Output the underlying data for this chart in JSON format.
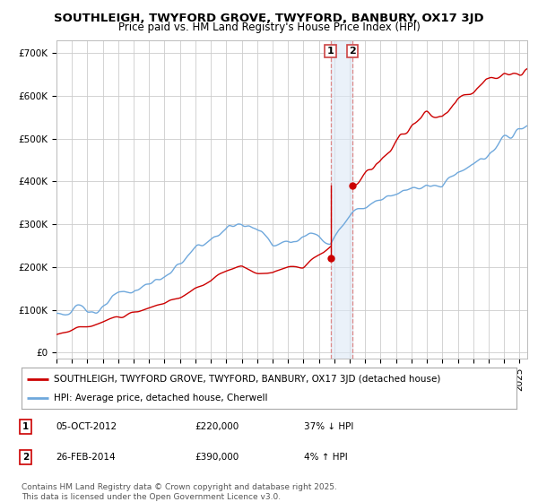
{
  "title": "SOUTHLEIGH, TWYFORD GROVE, TWYFORD, BANBURY, OX17 3JD",
  "subtitle": "Price paid vs. HM Land Registry's House Price Index (HPI)",
  "yticks": [
    0,
    100000,
    200000,
    300000,
    400000,
    500000,
    600000,
    700000
  ],
  "ytick_labels": [
    "£0",
    "£100K",
    "£200K",
    "£300K",
    "£400K",
    "£500K",
    "£600K",
    "£700K"
  ],
  "xlim_start": 1995.0,
  "xlim_end": 2025.5,
  "ylim": [
    -15000,
    730000
  ],
  "hpi_color": "#6fa8dc",
  "price_color": "#cc0000",
  "marker1_date": 2012.75,
  "marker1_price": 220000,
  "marker2_date": 2014.15,
  "marker2_price": 390000,
  "shade_color": "#dce8f5",
  "shade_alpha": 0.6,
  "vline_color": "#dd8888",
  "legend_line1": "SOUTHLEIGH, TWYFORD GROVE, TWYFORD, BANBURY, OX17 3JD (detached house)",
  "legend_line2": "HPI: Average price, detached house, Cherwell",
  "table_row1": [
    "1",
    "05-OCT-2012",
    "£220,000",
    "37% ↓ HPI"
  ],
  "table_row2": [
    "2",
    "26-FEB-2014",
    "£390,000",
    "4% ↑ HPI"
  ],
  "footer": "Contains HM Land Registry data © Crown copyright and database right 2025.\nThis data is licensed under the Open Government Licence v3.0.",
  "grid_color": "#cccccc",
  "background_color": "#ffffff",
  "title_fontsize": 9.5,
  "subtitle_fontsize": 8.5,
  "tick_fontsize": 7.5,
  "legend_fontsize": 7.5,
  "table_fontsize": 7.5,
  "footer_fontsize": 6.5,
  "hpi_waypoints_x": [
    1995,
    1997,
    1998,
    2000,
    2002,
    2003,
    2004,
    2005,
    2006,
    2007,
    2008,
    2009,
    2010,
    2011,
    2012,
    2012.75,
    2013,
    2014,
    2014.15,
    2015,
    2016,
    2017,
    2018,
    2019,
    2020,
    2021,
    2022,
    2023,
    2024,
    2025,
    2025.5
  ],
  "hpi_waypoints_y": [
    90000,
    100000,
    108000,
    130000,
    165000,
    195000,
    220000,
    240000,
    265000,
    290000,
    275000,
    255000,
    265000,
    270000,
    278000,
    282000,
    300000,
    335000,
    340000,
    365000,
    385000,
    415000,
    435000,
    450000,
    455000,
    500000,
    510000,
    530000,
    555000,
    575000,
    585000
  ],
  "red_waypoints_x": [
    1995,
    1997,
    1998,
    2000,
    2002,
    2003,
    2004,
    2005,
    2006,
    2007,
    2008,
    2009,
    2010,
    2011,
    2012,
    2012.75
  ],
  "red_waypoints_y": [
    42000,
    50000,
    56000,
    68000,
    88000,
    105000,
    122000,
    135000,
    155000,
    175000,
    165000,
    155000,
    160000,
    165000,
    200000,
    220000
  ],
  "red_waypoints2_x": [
    2014.15,
    2015,
    2016,
    2017,
    2018,
    2019,
    2020,
    2021,
    2022,
    2023,
    2024,
    2025,
    2025.5
  ],
  "red_waypoints2_y": [
    390000,
    410000,
    440000,
    470000,
    490000,
    510000,
    515000,
    560000,
    575000,
    595000,
    615000,
    610000,
    620000
  ]
}
